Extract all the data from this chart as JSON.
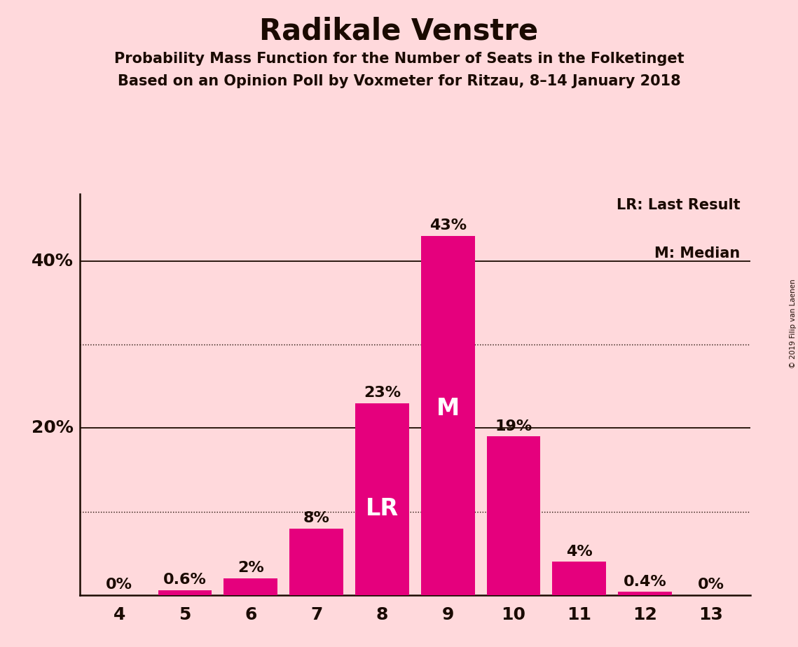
{
  "title": "Radikale Venstre",
  "subtitle1": "Probability Mass Function for the Number of Seats in the Folketinget",
  "subtitle2": "Based on an Opinion Poll by Voxmeter for Ritzau, 8–14 January 2018",
  "categories": [
    4,
    5,
    6,
    7,
    8,
    9,
    10,
    11,
    12,
    13
  ],
  "values": [
    0.0,
    0.6,
    2.0,
    8.0,
    23.0,
    43.0,
    19.0,
    4.0,
    0.4,
    0.0
  ],
  "bar_color": "#E5007D",
  "background_color": "#FFD9DC",
  "text_color": "#1a0a00",
  "bar_labels": [
    "0%",
    "0.6%",
    "2%",
    "8%",
    "23%",
    "43%",
    "19%",
    "4%",
    "0.4%",
    "0%"
  ],
  "solid_gridlines": [
    20,
    40
  ],
  "dotted_gridlines": [
    10,
    30
  ],
  "lr_bar_index": 4,
  "median_bar_index": 5,
  "lr_label": "LR",
  "median_label": "M",
  "legend_text1": "LR: Last Result",
  "legend_text2": "M: Median",
  "copyright_text": "© 2019 Filip van Laenen",
  "title_fontsize": 30,
  "subtitle_fontsize": 15,
  "bar_label_fontsize": 16,
  "axis_tick_fontsize": 18,
  "legend_fontsize": 15,
  "inbar_label_fontsize": 24,
  "ylim": [
    0,
    48
  ],
  "bar_width": 0.82
}
